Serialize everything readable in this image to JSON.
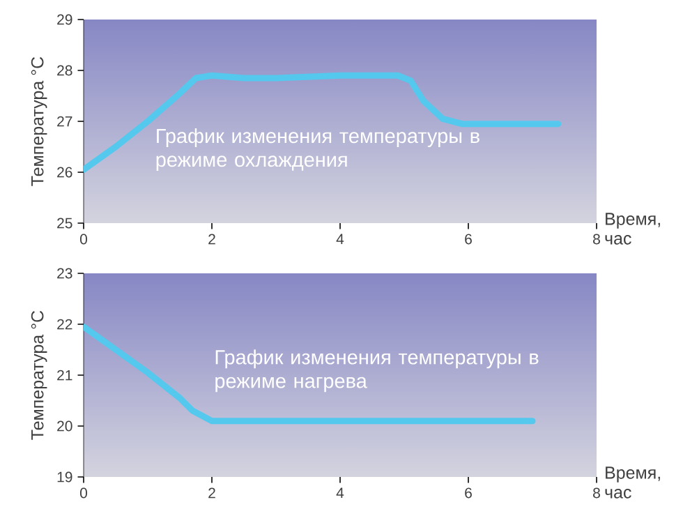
{
  "chart_data": [
    {
      "type": "line",
      "ylabel": "Температура °C",
      "xlabel": "Время, час",
      "annotations": [
        "График изменения температуры в режиме охлаждения"
      ],
      "series": [
        {
          "color": "#55c8ee",
          "x": [
            0,
            0.5,
            1,
            1.5,
            1.75,
            2,
            2.5,
            3,
            4,
            4.9,
            5.1,
            5.3,
            5.6,
            5.9,
            6.5,
            7.4
          ],
          "values": [
            26.05,
            26.5,
            27.0,
            27.55,
            27.85,
            27.9,
            27.85,
            27.85,
            27.9,
            27.9,
            27.8,
            27.4,
            27.05,
            26.95,
            26.95,
            26.95
          ]
        }
      ],
      "xlim": [
        0,
        8
      ],
      "xticks": [
        0,
        2,
        4,
        6,
        8
      ],
      "ylim": [
        25,
        29
      ],
      "yticks": [
        25,
        26,
        27,
        28,
        29
      ]
    },
    {
      "type": "line",
      "ylabel": "Температура °C",
      "xlabel": "Время, час",
      "annotations": [
        "График изменения температуры в режиме нагрева"
      ],
      "series": [
        {
          "color": "#55c8ee",
          "x": [
            0,
            0.5,
            1,
            1.5,
            1.7,
            2,
            4,
            7
          ],
          "values": [
            21.95,
            21.5,
            21.05,
            20.55,
            20.3,
            20.1,
            20.1,
            20.1
          ]
        }
      ],
      "xlim": [
        0,
        8
      ],
      "xticks": [
        0,
        2,
        4,
        6,
        8
      ],
      "ylim": [
        19,
        23
      ],
      "yticks": [
        19,
        20,
        21,
        22,
        23
      ]
    }
  ]
}
